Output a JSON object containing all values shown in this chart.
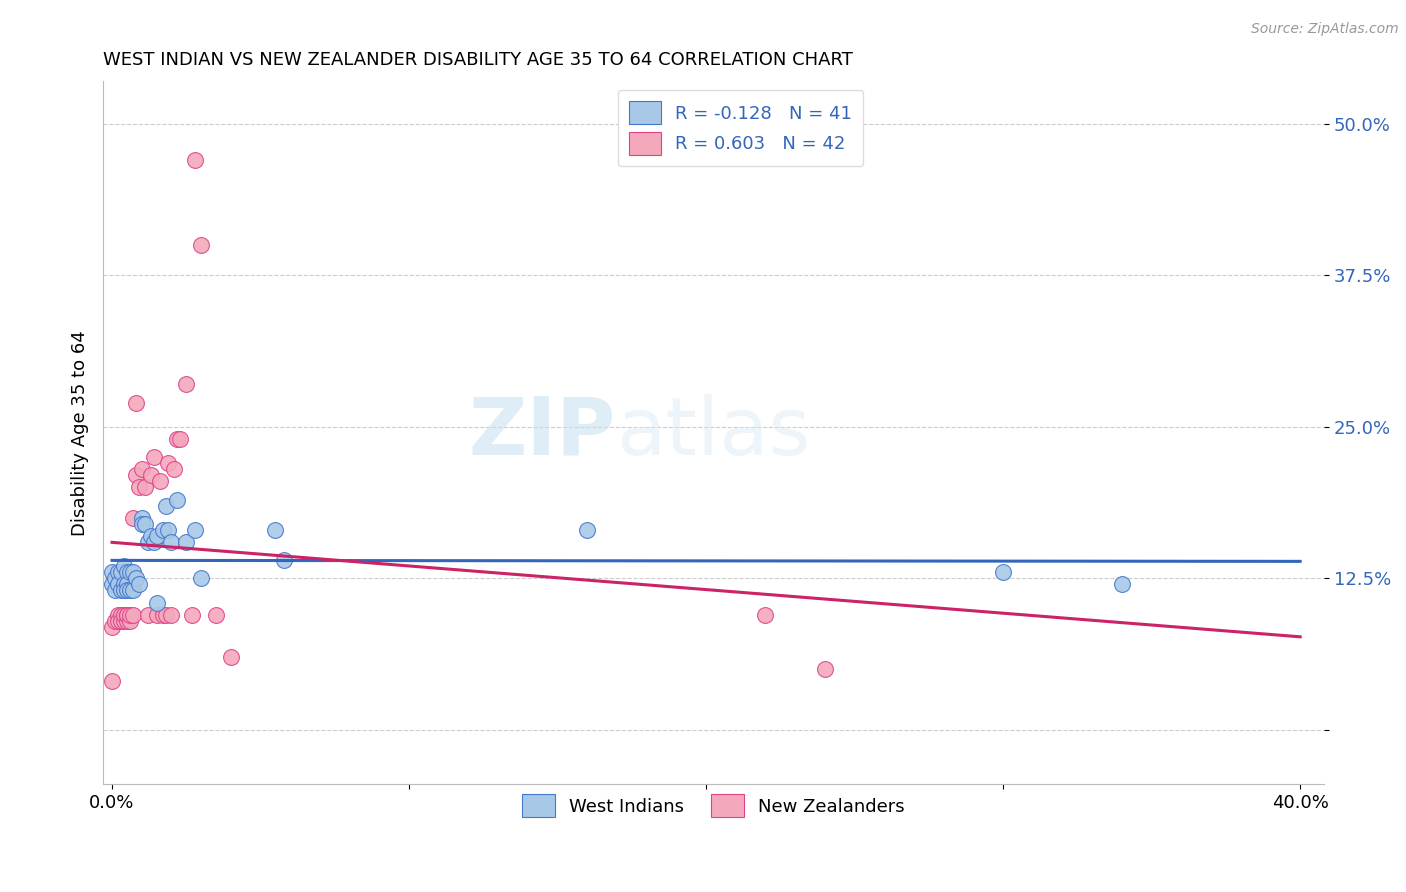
{
  "title": "WEST INDIAN VS NEW ZEALANDER DISABILITY AGE 35 TO 64 CORRELATION CHART",
  "source": "Source: ZipAtlas.com",
  "ylabel": "Disability Age 35 to 64",
  "yticks": [
    0.0,
    0.125,
    0.25,
    0.375,
    0.5
  ],
  "ytick_labels": [
    "",
    "12.5%",
    "25.0%",
    "37.5%",
    "50.0%"
  ],
  "xlim": [
    -0.003,
    0.408
  ],
  "ylim": [
    -0.045,
    0.535
  ],
  "legend_r1": "R = -0.128",
  "legend_n1": "N = 41",
  "legend_r2": "R = 0.603",
  "legend_n2": "N = 42",
  "blue_fill": "#A8C8E8",
  "pink_fill": "#F4A8BC",
  "blue_edge": "#4477CC",
  "pink_edge": "#DD4488",
  "blue_line": "#3366BB",
  "pink_line": "#CC2266",
  "west_indians_x": [
    0.0,
    0.0,
    0.001,
    0.001,
    0.002,
    0.002,
    0.003,
    0.003,
    0.004,
    0.004,
    0.004,
    0.005,
    0.005,
    0.005,
    0.006,
    0.006,
    0.007,
    0.007,
    0.008,
    0.009,
    0.01,
    0.01,
    0.011,
    0.012,
    0.013,
    0.014,
    0.015,
    0.015,
    0.017,
    0.018,
    0.019,
    0.02,
    0.022,
    0.025,
    0.028,
    0.03,
    0.055,
    0.058,
    0.16,
    0.3,
    0.34
  ],
  "west_indians_y": [
    0.13,
    0.12,
    0.125,
    0.115,
    0.13,
    0.12,
    0.115,
    0.13,
    0.135,
    0.12,
    0.115,
    0.13,
    0.12,
    0.115,
    0.13,
    0.115,
    0.13,
    0.115,
    0.125,
    0.12,
    0.175,
    0.17,
    0.17,
    0.155,
    0.16,
    0.155,
    0.16,
    0.105,
    0.165,
    0.185,
    0.165,
    0.155,
    0.19,
    0.155,
    0.165,
    0.125,
    0.165,
    0.14,
    0.165,
    0.13,
    0.12
  ],
  "new_zealanders_x": [
    0.0,
    0.0,
    0.001,
    0.002,
    0.002,
    0.003,
    0.003,
    0.003,
    0.004,
    0.004,
    0.005,
    0.005,
    0.005,
    0.006,
    0.006,
    0.007,
    0.007,
    0.008,
    0.008,
    0.009,
    0.01,
    0.011,
    0.012,
    0.013,
    0.014,
    0.015,
    0.016,
    0.017,
    0.018,
    0.019,
    0.02,
    0.021,
    0.022,
    0.023,
    0.025,
    0.027,
    0.028,
    0.03,
    0.035,
    0.04,
    0.22,
    0.24
  ],
  "new_zealanders_y": [
    0.085,
    0.04,
    0.09,
    0.095,
    0.09,
    0.13,
    0.095,
    0.09,
    0.09,
    0.095,
    0.09,
    0.095,
    0.095,
    0.09,
    0.095,
    0.095,
    0.175,
    0.21,
    0.27,
    0.2,
    0.215,
    0.2,
    0.095,
    0.21,
    0.225,
    0.095,
    0.205,
    0.095,
    0.095,
    0.22,
    0.095,
    0.215,
    0.24,
    0.24,
    0.285,
    0.095,
    0.47,
    0.4,
    0.095,
    0.06,
    0.095,
    0.05
  ],
  "xtick_positions": [
    0.0,
    0.1,
    0.2,
    0.3,
    0.4
  ],
  "xtick_show_labels": [
    true,
    false,
    false,
    false,
    true
  ],
  "xtick_label_values": [
    "0.0%",
    "",
    "",
    "",
    "40.0%"
  ]
}
